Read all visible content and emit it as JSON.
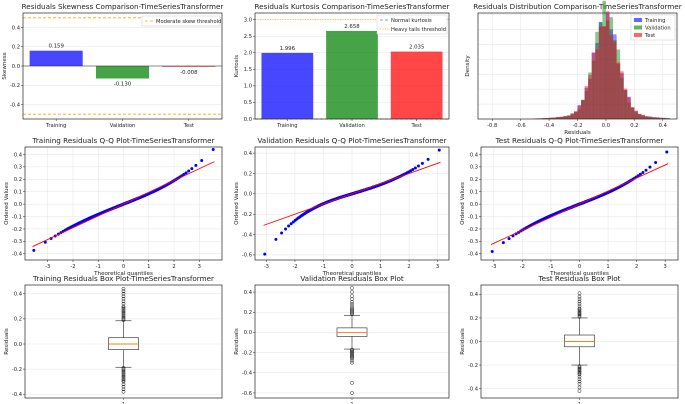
{
  "colors": {
    "training": "#0000ff",
    "validation": "#008000",
    "test": "#ff0000",
    "threshold": "#ffa500",
    "qq_points": "#0000ff",
    "qq_line": "#ff0000",
    "median": "#ff7f0e"
  },
  "chart_data": [
    {
      "id": "skew",
      "type": "bar",
      "title": "Residuals Skewness Comparison-TimeSeriesTransformer",
      "ylabel": "Skewness",
      "xlabel": "",
      "categories": [
        "Training",
        "Validation",
        "Test"
      ],
      "values": [
        0.159,
        -0.13,
        -0.008
      ],
      "labels": [
        "0.159",
        "-0.130",
        "-0.008"
      ],
      "ylim": [
        -0.55,
        0.55
      ],
      "yticks": [
        -0.4,
        -0.2,
        0.0,
        0.2,
        0.4
      ],
      "ytick_labels": [
        "-0.4",
        "-0.2",
        "0.0",
        "0.2",
        "0.4"
      ],
      "threshold": {
        "name": "Moderate skew threshold",
        "values": [
          0.5,
          -0.5
        ]
      },
      "legend": [
        "Moderate skew threshold"
      ]
    },
    {
      "id": "kurt",
      "type": "bar",
      "title": "Residuals Kurtosis Comparison-TimeSeriesTransformer",
      "ylabel": "Kurtosis",
      "xlabel": "",
      "categories": [
        "Training",
        "Validation",
        "Test"
      ],
      "values": [
        1.996,
        2.658,
        2.035
      ],
      "labels": [
        "1.996",
        "2.658",
        "2.035"
      ],
      "ylim": [
        0,
        3.2
      ],
      "yticks": [
        0.0,
        0.5,
        1.0,
        1.5,
        2.0,
        2.5,
        3.0
      ],
      "ytick_labels": [
        "0.0",
        "0.5",
        "1.0",
        "1.5",
        "2.0",
        "2.5",
        "3.0"
      ],
      "reference_lines": [
        {
          "name": "Normal kurtosis",
          "value": 0,
          "style": "dashed",
          "color": "#808080"
        },
        {
          "name": "Heavy tails threshold",
          "value": 3,
          "style": "dotted",
          "color": "#ffa500"
        }
      ],
      "legend": [
        "Normal kurtosis",
        "Heavy tails threshold"
      ]
    },
    {
      "id": "dist",
      "type": "histogram",
      "title": "Residuals Distribution Comparison-TimeSeriesTransformer",
      "xlabel": "Residuals",
      "ylabel": "Density",
      "xlim": [
        -0.9,
        0.5
      ],
      "ylim": [
        0,
        14.2
      ],
      "xticks": [
        -0.8,
        -0.6,
        -0.4,
        -0.2,
        0.0,
        0.2,
        0.4
      ],
      "xtick_labels": [
        "-0.8",
        "-0.6",
        "-0.4",
        "-0.2",
        "0.0",
        "0.2",
        "0.4"
      ],
      "series": [
        {
          "name": "Training",
          "color": "#0000ff",
          "mean": 0.0,
          "sd": 0.085,
          "peak": 12.8
        },
        {
          "name": "Validation",
          "color": "#008000",
          "mean": 0.0,
          "sd": 0.08,
          "peak": 14.0
        },
        {
          "name": "Test",
          "color": "#ff0000",
          "mean": 0.0,
          "sd": 0.087,
          "peak": 12.5
        }
      ],
      "legend": [
        "Training",
        "Validation",
        "Test"
      ]
    },
    {
      "id": "qq_train",
      "type": "scatter",
      "title": "Training Residuals Q-Q Plot-TimeSeriesTransformer",
      "xlabel": "Theoretical quantiles",
      "ylabel": "Ordered Values",
      "xlim": [
        -3.9,
        3.9
      ],
      "ylim": [
        -0.45,
        0.46
      ],
      "xticks": [
        -3,
        -2,
        -1,
        0,
        1,
        2,
        3
      ],
      "yticks": [
        -0.4,
        -0.3,
        -0.2,
        -0.1,
        0.0,
        0.1,
        0.2,
        0.3,
        0.4
      ],
      "ytick_labels": [
        "-0.4",
        "-0.3",
        "-0.2",
        "-0.1",
        "0.0",
        "0.1",
        "0.2",
        "0.3",
        "0.4"
      ],
      "fit_line": {
        "slope": 0.095,
        "intercept": 0.0
      },
      "range": [
        -3.6,
        3.6
      ],
      "tail_low": -0.38,
      "tail_high": 0.45
    },
    {
      "id": "qq_val",
      "type": "scatter",
      "title": "Validation Residuals Q-Q Plot-TimeSeriesTransformer",
      "xlabel": "Theoretical quantiles",
      "ylabel": "Ordered Values",
      "xlim": [
        -3.4,
        3.4
      ],
      "ylim": [
        -0.65,
        0.46
      ],
      "xticks": [
        -3,
        -2,
        -1,
        0,
        1,
        2,
        3
      ],
      "yticks": [
        -0.6,
        -0.4,
        -0.2,
        0.0,
        0.2,
        0.4
      ],
      "ytick_labels": [
        "-0.6",
        "-0.4",
        "-0.2",
        "0.0",
        "0.2",
        "0.4"
      ],
      "fit_line": {
        "slope": 0.1,
        "intercept": 0.0
      },
      "range": [
        -3.1,
        3.1
      ],
      "tail_low": -0.61,
      "tail_high": 0.44
    },
    {
      "id": "qq_test",
      "type": "scatter",
      "title": "Test Residuals Q-Q Plot-TimeSeriesTransformer",
      "xlabel": "Theoretical quantiles",
      "ylabel": "Ordered Values",
      "xlim": [
        -3.45,
        3.45
      ],
      "ylim": [
        -0.45,
        0.46
      ],
      "xticks": [
        -3,
        -2,
        -1,
        0,
        1,
        2,
        3
      ],
      "yticks": [
        -0.4,
        -0.3,
        -0.2,
        -0.1,
        0.0,
        0.1,
        0.2,
        0.3,
        0.4
      ],
      "ytick_labels": [
        "-0.4",
        "-0.3",
        "-0.2",
        "-0.1",
        "0.0",
        "0.1",
        "0.2",
        "0.3",
        "0.4"
      ],
      "fit_line": {
        "slope": 0.105,
        "intercept": 0.0
      },
      "range": [
        -3.1,
        3.1
      ],
      "tail_low": -0.39,
      "tail_high": 0.43
    },
    {
      "id": "box_train",
      "type": "box",
      "title": "Training Residuals Box Plot-TimeSeriesTransformer",
      "ylabel": "Residuals",
      "xtick_labels": [
        "1"
      ],
      "ylim": [
        -0.43,
        0.47
      ],
      "yticks": [
        -0.4,
        -0.2,
        0.0,
        0.2,
        0.4
      ],
      "ytick_labels": [
        "-0.4",
        "-0.2",
        "0.0",
        "0.2",
        "0.4"
      ],
      "q1": -0.045,
      "median": 0.0,
      "q3": 0.05,
      "whisker_low": -0.185,
      "whisker_high": 0.185,
      "outliers_low": [
        -0.19,
        -0.2,
        -0.21,
        -0.22,
        -0.23,
        -0.24,
        -0.25,
        -0.26,
        -0.27,
        -0.28,
        -0.29,
        -0.3,
        -0.32,
        -0.34,
        -0.36,
        -0.38
      ],
      "outliers_high": [
        0.19,
        0.2,
        0.21,
        0.22,
        0.23,
        0.24,
        0.25,
        0.26,
        0.27,
        0.28,
        0.29,
        0.3,
        0.32,
        0.34,
        0.36,
        0.38,
        0.4,
        0.42,
        0.44
      ]
    },
    {
      "id": "box_val",
      "type": "box",
      "title": "Validation Residuals Box Plot",
      "ylabel": "Residuals",
      "xtick_labels": [
        "1"
      ],
      "ylim": [
        -0.65,
        0.47
      ],
      "yticks": [
        -0.6,
        -0.4,
        -0.2,
        0.0,
        0.2,
        0.4
      ],
      "ytick_labels": [
        "-0.6",
        "-0.4",
        "-0.2",
        "0.0",
        "0.2",
        "0.4"
      ],
      "q1": -0.04,
      "median": 0.0,
      "q3": 0.045,
      "whisker_low": -0.165,
      "whisker_high": 0.17,
      "outliers_low": [
        -0.17,
        -0.18,
        -0.19,
        -0.2,
        -0.21,
        -0.22,
        -0.23,
        -0.24,
        -0.25,
        -0.26,
        -0.28,
        -0.3,
        -0.5,
        -0.6
      ],
      "outliers_high": [
        0.18,
        0.19,
        0.2,
        0.21,
        0.22,
        0.23,
        0.24,
        0.26,
        0.28,
        0.3,
        0.33,
        0.36,
        0.4,
        0.44
      ]
    },
    {
      "id": "box_test",
      "type": "box",
      "title": "Test Residuals Box Plot",
      "ylabel": "Residuals",
      "xtick_labels": [
        "1"
      ],
      "ylim": [
        -0.48,
        0.48
      ],
      "yticks": [
        -0.4,
        -0.2,
        0.0,
        0.2,
        0.4
      ],
      "ytick_labels": [
        "-0.4",
        "-0.2",
        "0.0",
        "0.2",
        "0.4"
      ],
      "q1": -0.045,
      "median": 0.0,
      "q3": 0.055,
      "whisker_low": -0.2,
      "whisker_high": 0.2,
      "outliers_low": [
        -0.21,
        -0.22,
        -0.23,
        -0.24,
        -0.25,
        -0.26,
        -0.27,
        -0.28,
        -0.3,
        -0.32,
        -0.34,
        -0.36,
        -0.39,
        -0.42
      ],
      "outliers_high": [
        0.21,
        0.22,
        0.23,
        0.24,
        0.25,
        0.26,
        0.27,
        0.28,
        0.3,
        0.32,
        0.34,
        0.36,
        0.38,
        0.41
      ]
    }
  ]
}
